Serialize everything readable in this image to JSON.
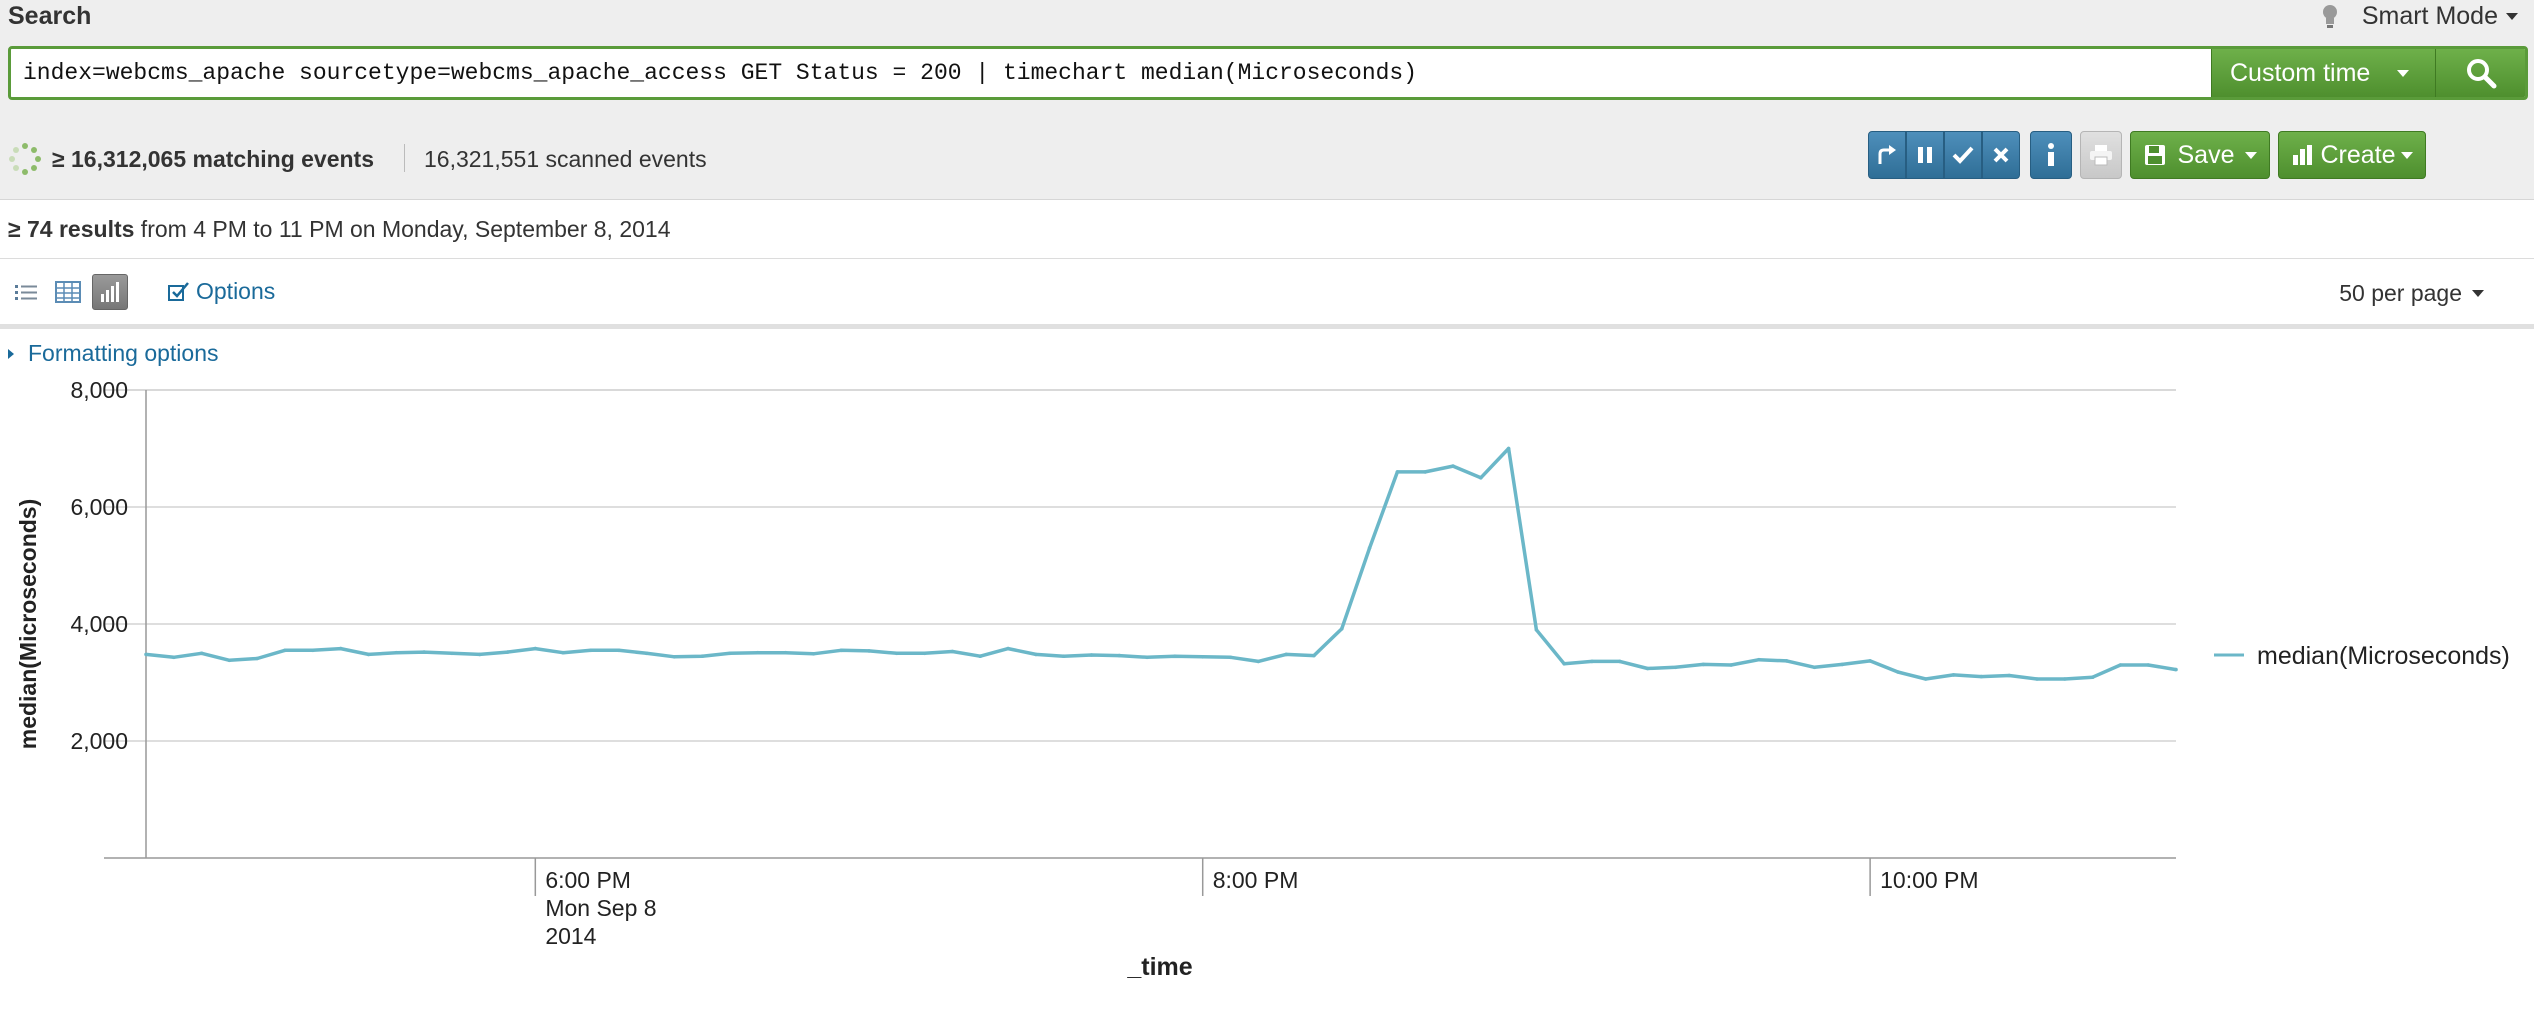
{
  "header": {
    "title": "Search",
    "mode": "Smart Mode"
  },
  "search": {
    "query": "index=webcms_apache sourcetype=webcms_apache_access GET Status = 200 | timechart median(Microseconds)",
    "time_range": "Custom time"
  },
  "job": {
    "matching": "≥ 16,312,065 matching events",
    "scanned": "16,321,551 scanned events"
  },
  "toolbar": {
    "save_label": "Save",
    "create_label": "Create"
  },
  "results": {
    "count": "≥ 74 results",
    "range": " from 4 PM to 11 PM on Monday, September 8, 2014"
  },
  "view": {
    "options_label": "Options",
    "per_page": "50 per page"
  },
  "formatting_label": "Formatting options",
  "colors": {
    "series": "#6bb7c8",
    "green_button": "#5a9b3a",
    "blue_button": "#3b7ca8",
    "link": "#1a6a9a"
  },
  "chart_data": {
    "type": "line",
    "xlabel": "_time",
    "ylabel": "median(Microseconds)",
    "ylim": [
      0,
      8000
    ],
    "yticks": [
      2000,
      4000,
      6000,
      8000
    ],
    "ytick_labels": [
      "2,000",
      "4,000",
      "6,000",
      "8,000"
    ],
    "x_start": "2014-09-08 16:50",
    "x_step_minutes": 5,
    "x_tick_labels": [
      {
        "time": "2014-09-08 18:00",
        "lines": [
          "6:00 PM",
          "Mon Sep 8",
          "2014"
        ]
      },
      {
        "time": "2014-09-08 20:00",
        "lines": [
          "8:00 PM"
        ]
      },
      {
        "time": "2014-09-08 22:00",
        "lines": [
          "10:00 PM"
        ]
      }
    ],
    "legend_position": "right",
    "grid": true,
    "series": [
      {
        "name": "median(Microseconds)",
        "values": [
          3480,
          3430,
          3500,
          3380,
          3410,
          3550,
          3550,
          3580,
          3480,
          3510,
          3520,
          3500,
          3480,
          3520,
          3580,
          3510,
          3550,
          3550,
          3500,
          3440,
          3450,
          3500,
          3510,
          3510,
          3490,
          3550,
          3540,
          3500,
          3500,
          3530,
          3450,
          3580,
          3480,
          3450,
          3470,
          3460,
          3430,
          3450,
          3440,
          3430,
          3360,
          3480,
          3460,
          3920,
          5300,
          6600,
          6600,
          6700,
          6500,
          7000,
          3900,
          3320,
          3360,
          3360,
          3240,
          3260,
          3310,
          3300,
          3390,
          3370,
          3260,
          3310,
          3370,
          3180,
          3060,
          3130,
          3100,
          3120,
          3060,
          3060,
          3090,
          3300,
          3300,
          3220
        ]
      }
    ]
  }
}
